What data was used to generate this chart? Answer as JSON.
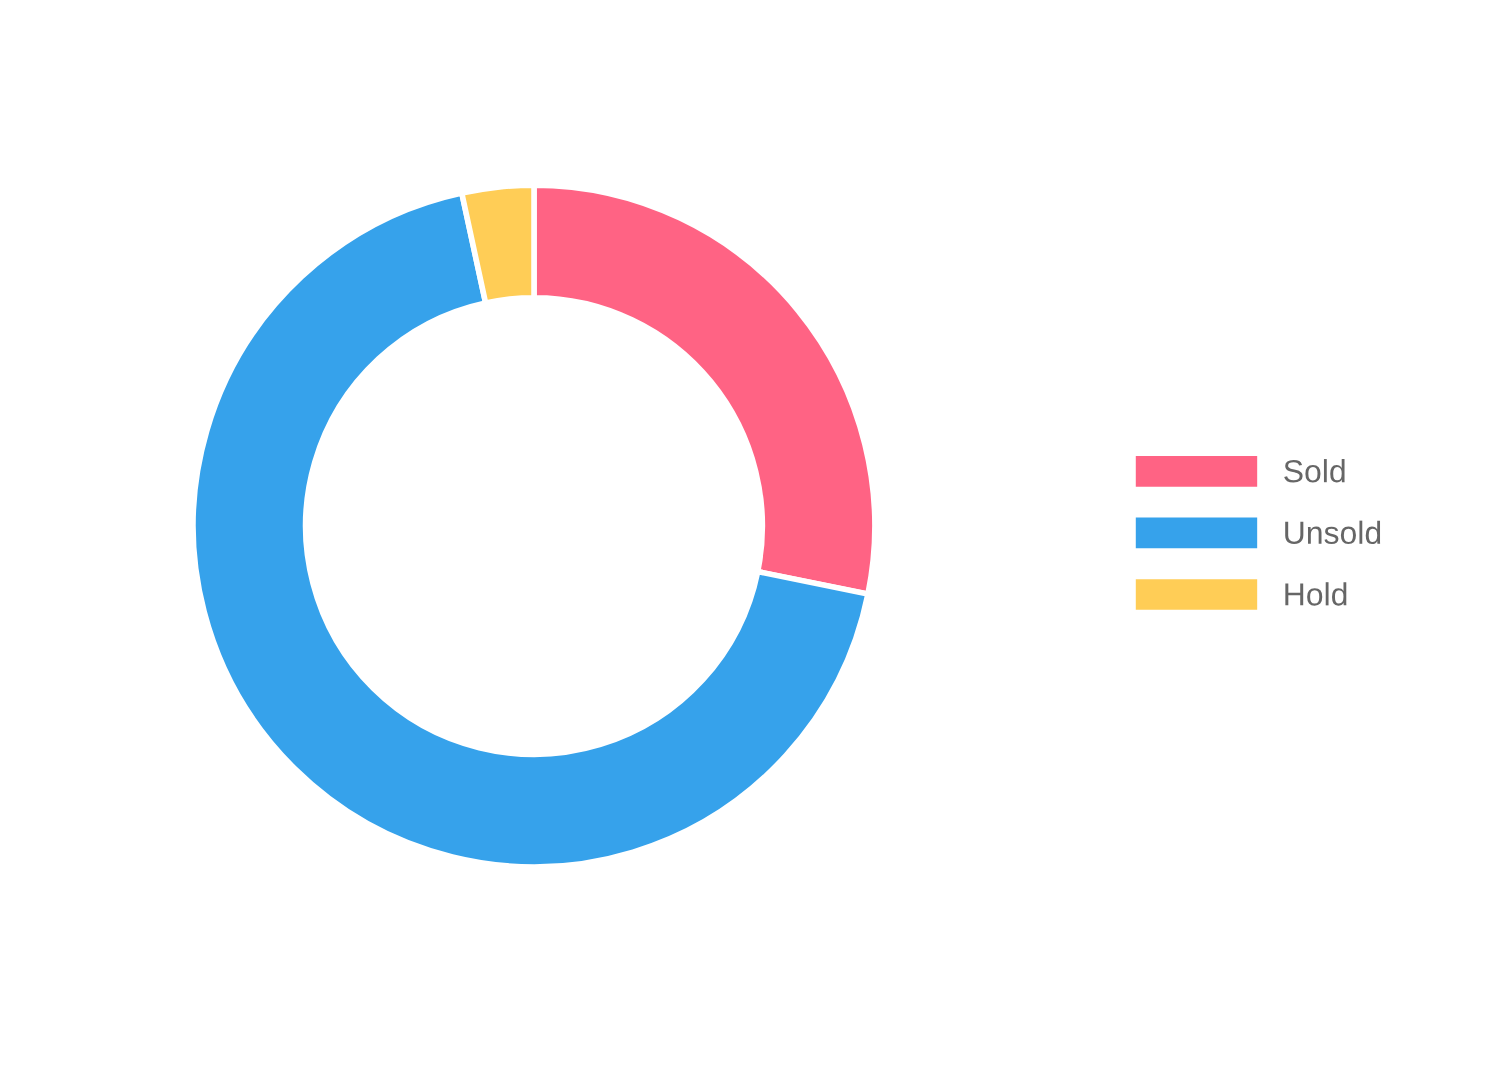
{
  "chart_data": {
    "type": "donut",
    "categories": [
      "Sold",
      "Unsold",
      "Hold"
    ],
    "values": [
      28.2,
      68.4,
      3.4
    ],
    "colors": [
      "#ff6384",
      "#36a2eb",
      "#ffcd56"
    ],
    "legend": "right"
  }
}
